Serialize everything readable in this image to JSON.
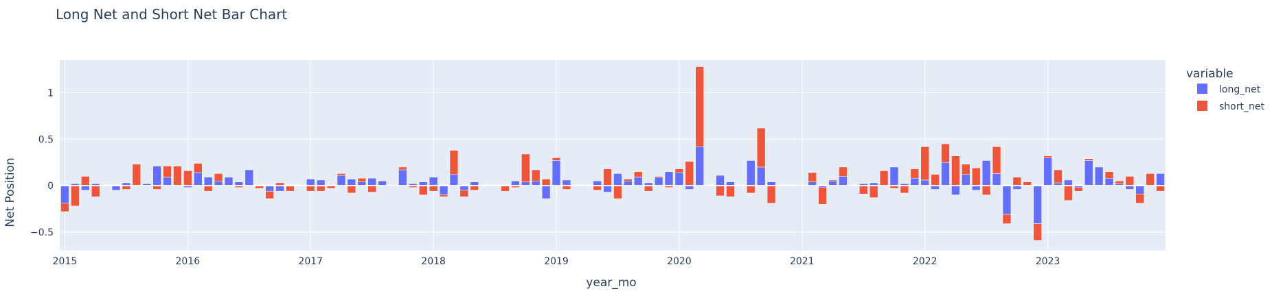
{
  "chart_data": {
    "type": "bar",
    "barmode": "relative",
    "title": "Long Net and Short Net Bar Chart",
    "xlabel": "year_mo",
    "ylabel": "Net Position",
    "legend_title": "variable",
    "legend_position": "top-right",
    "grid": true,
    "xlim": [
      "2015-01",
      "2023-12"
    ],
    "ylim": [
      -0.7,
      1.35
    ],
    "yticks": [
      -0.5,
      0,
      0.5,
      1
    ],
    "ytick_labels": [
      "−0.5",
      "0",
      "0.5",
      "1"
    ],
    "xticks": [
      "2015-01",
      "2016-01",
      "2017-01",
      "2018-01",
      "2019-01",
      "2020-01",
      "2021-01",
      "2022-01",
      "2023-01"
    ],
    "xtick_labels": [
      "2015",
      "2016",
      "2017",
      "2018",
      "2019",
      "2020",
      "2021",
      "2022",
      "2023"
    ],
    "colors": {
      "long_net": "#636efa",
      "short_net": "#ef553b",
      "plot_bg": "#e5ecf6"
    },
    "x": [
      "2015-01",
      "2015-02",
      "2015-03",
      "2015-04",
      "2015-05",
      "2015-06",
      "2015-07",
      "2015-08",
      "2015-09",
      "2015-10",
      "2015-11",
      "2015-12",
      "2016-01",
      "2016-02",
      "2016-03",
      "2016-04",
      "2016-05",
      "2016-06",
      "2016-07",
      "2016-08",
      "2016-09",
      "2016-10",
      "2016-11",
      "2016-12",
      "2017-01",
      "2017-02",
      "2017-03",
      "2017-04",
      "2017-05",
      "2017-06",
      "2017-07",
      "2017-08",
      "2017-09",
      "2017-10",
      "2017-11",
      "2017-12",
      "2018-01",
      "2018-02",
      "2018-03",
      "2018-04",
      "2018-05",
      "2018-06",
      "2018-07",
      "2018-08",
      "2018-09",
      "2018-10",
      "2018-11",
      "2018-12",
      "2019-01",
      "2019-02",
      "2019-03",
      "2019-04",
      "2019-05",
      "2019-06",
      "2019-07",
      "2019-08",
      "2019-09",
      "2019-10",
      "2019-11",
      "2019-12",
      "2020-01",
      "2020-02",
      "2020-03",
      "2020-04",
      "2020-05",
      "2020-06",
      "2020-07",
      "2020-08",
      "2020-09",
      "2020-10",
      "2020-11",
      "2020-12",
      "2021-01",
      "2021-02",
      "2021-03",
      "2021-04",
      "2021-05",
      "2021-06",
      "2021-07",
      "2021-08",
      "2021-09",
      "2021-10",
      "2021-11",
      "2021-12",
      "2022-01",
      "2022-02",
      "2022-03",
      "2022-04",
      "2022-05",
      "2022-06",
      "2022-07",
      "2022-08",
      "2022-09",
      "2022-10",
      "2022-11",
      "2022-12",
      "2023-01",
      "2023-02",
      "2023-03",
      "2023-04",
      "2023-05",
      "2023-06",
      "2023-07",
      "2023-08",
      "2023-09",
      "2023-10",
      "2023-11",
      "2023-12"
    ],
    "series": [
      {
        "name": "long_net",
        "values": [
          -0.19,
          0.02,
          -0.05,
          0.02,
          0,
          -0.05,
          0.03,
          0,
          0.02,
          0.21,
          0.09,
          0,
          -0.02,
          0.14,
          0.09,
          0.05,
          0.09,
          0.04,
          0.17,
          0,
          -0.06,
          -0.06,
          0,
          0,
          0.07,
          0.06,
          0.01,
          0.11,
          0.07,
          0.04,
          0.08,
          0.05,
          0.01,
          0.17,
          0.02,
          0.04,
          0.09,
          -0.1,
          0.12,
          -0.05,
          0.04,
          0,
          0,
          0,
          0.05,
          0.04,
          0.05,
          -0.14,
          0.27,
          0.06,
          0,
          0,
          0.05,
          -0.07,
          0.13,
          0.05,
          0.09,
          0.03,
          0.09,
          0.15,
          0.14,
          -0.04,
          0.42,
          0,
          0.11,
          0.04,
          0,
          0.27,
          0.2,
          0.04,
          0,
          0,
          0,
          0.04,
          -0.02,
          0.05,
          0.1,
          0,
          0.02,
          0.03,
          0,
          0.2,
          0.02,
          0.08,
          0.06,
          -0.04,
          0.25,
          -0.1,
          0.12,
          -0.05,
          0.27,
          0.13,
          -0.31,
          -0.04,
          0,
          -0.41,
          0.3,
          0.03,
          0.06,
          -0.02,
          0.27,
          0.2,
          0.08,
          0.02,
          -0.04,
          -0.09,
          0,
          0.13
        ]
      },
      {
        "name": "short_net",
        "values": [
          -0.09,
          -0.22,
          0.1,
          -0.12,
          0,
          0,
          -0.04,
          0.23,
          0,
          -0.04,
          0.12,
          0.21,
          0.16,
          0.1,
          -0.06,
          0.08,
          0,
          -0.02,
          0,
          -0.03,
          -0.08,
          0.03,
          -0.06,
          0,
          -0.06,
          -0.06,
          -0.03,
          0.02,
          -0.08,
          0.04,
          -0.07,
          0,
          0,
          0.03,
          -0.02,
          -0.1,
          -0.06,
          -0.02,
          0.26,
          -0.07,
          -0.05,
          0,
          0,
          -0.06,
          -0.02,
          0.3,
          0.12,
          0.07,
          0.03,
          -0.04,
          0,
          0,
          -0.05,
          0.18,
          -0.14,
          0.02,
          0.06,
          -0.06,
          0.01,
          -0.02,
          0.04,
          0.26,
          0.86,
          0,
          -0.11,
          -0.12,
          0,
          -0.08,
          0.42,
          -0.19,
          0,
          0,
          0,
          0.1,
          -0.18,
          0.01,
          0.1,
          0,
          -0.09,
          -0.13,
          0.16,
          -0.03,
          -0.08,
          0.1,
          0.36,
          0.12,
          0.2,
          0.32,
          0.11,
          0.19,
          -0.1,
          0.29,
          -0.1,
          0.09,
          0.04,
          -0.18,
          0.02,
          0.14,
          -0.16,
          -0.04,
          0.02,
          0,
          0.07,
          0.03,
          0.1,
          -0.1,
          0.13,
          -0.06
        ]
      }
    ]
  }
}
